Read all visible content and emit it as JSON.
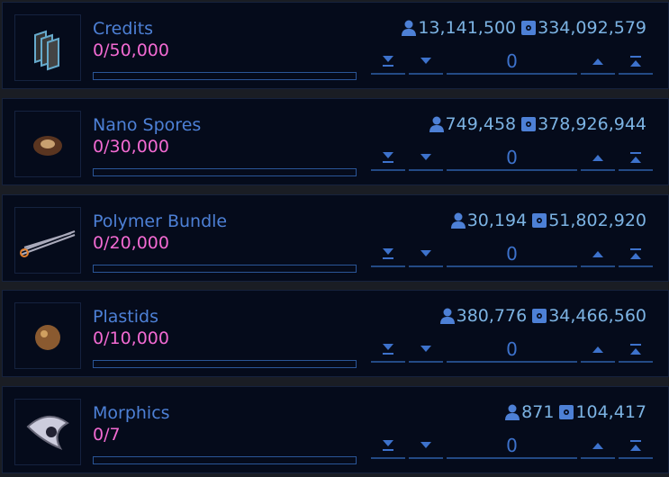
{
  "items": [
    {
      "name": "Credits",
      "progress": "0/50,000",
      "progress_fraction": 0,
      "players": "13,141,500",
      "clan": "334,092,579",
      "quantity": "0",
      "icon": "credits-icon"
    },
    {
      "name": "Nano Spores",
      "progress": "0/30,000",
      "progress_fraction": 0,
      "players": "749,458",
      "clan": "378,926,944",
      "quantity": "0",
      "icon": "nano-spores-icon"
    },
    {
      "name": "Polymer Bundle",
      "progress": "0/20,000",
      "progress_fraction": 0,
      "players": "30,194",
      "clan": "51,802,920",
      "quantity": "0",
      "icon": "polymer-bundle-icon"
    },
    {
      "name": "Plastids",
      "progress": "0/10,000",
      "progress_fraction": 0,
      "players": "380,776",
      "clan": "34,466,560",
      "quantity": "0",
      "icon": "plastids-icon"
    },
    {
      "name": "Morphics",
      "progress": "0/7",
      "progress_fraction": 0,
      "players": "871",
      "clan": "104,417",
      "quantity": "0",
      "icon": "morphics-icon"
    }
  ],
  "colors": {
    "name": "#4d80d6",
    "count": "#f26ad2",
    "stats": "#7cb3e3",
    "control": "#3d72cc"
  }
}
